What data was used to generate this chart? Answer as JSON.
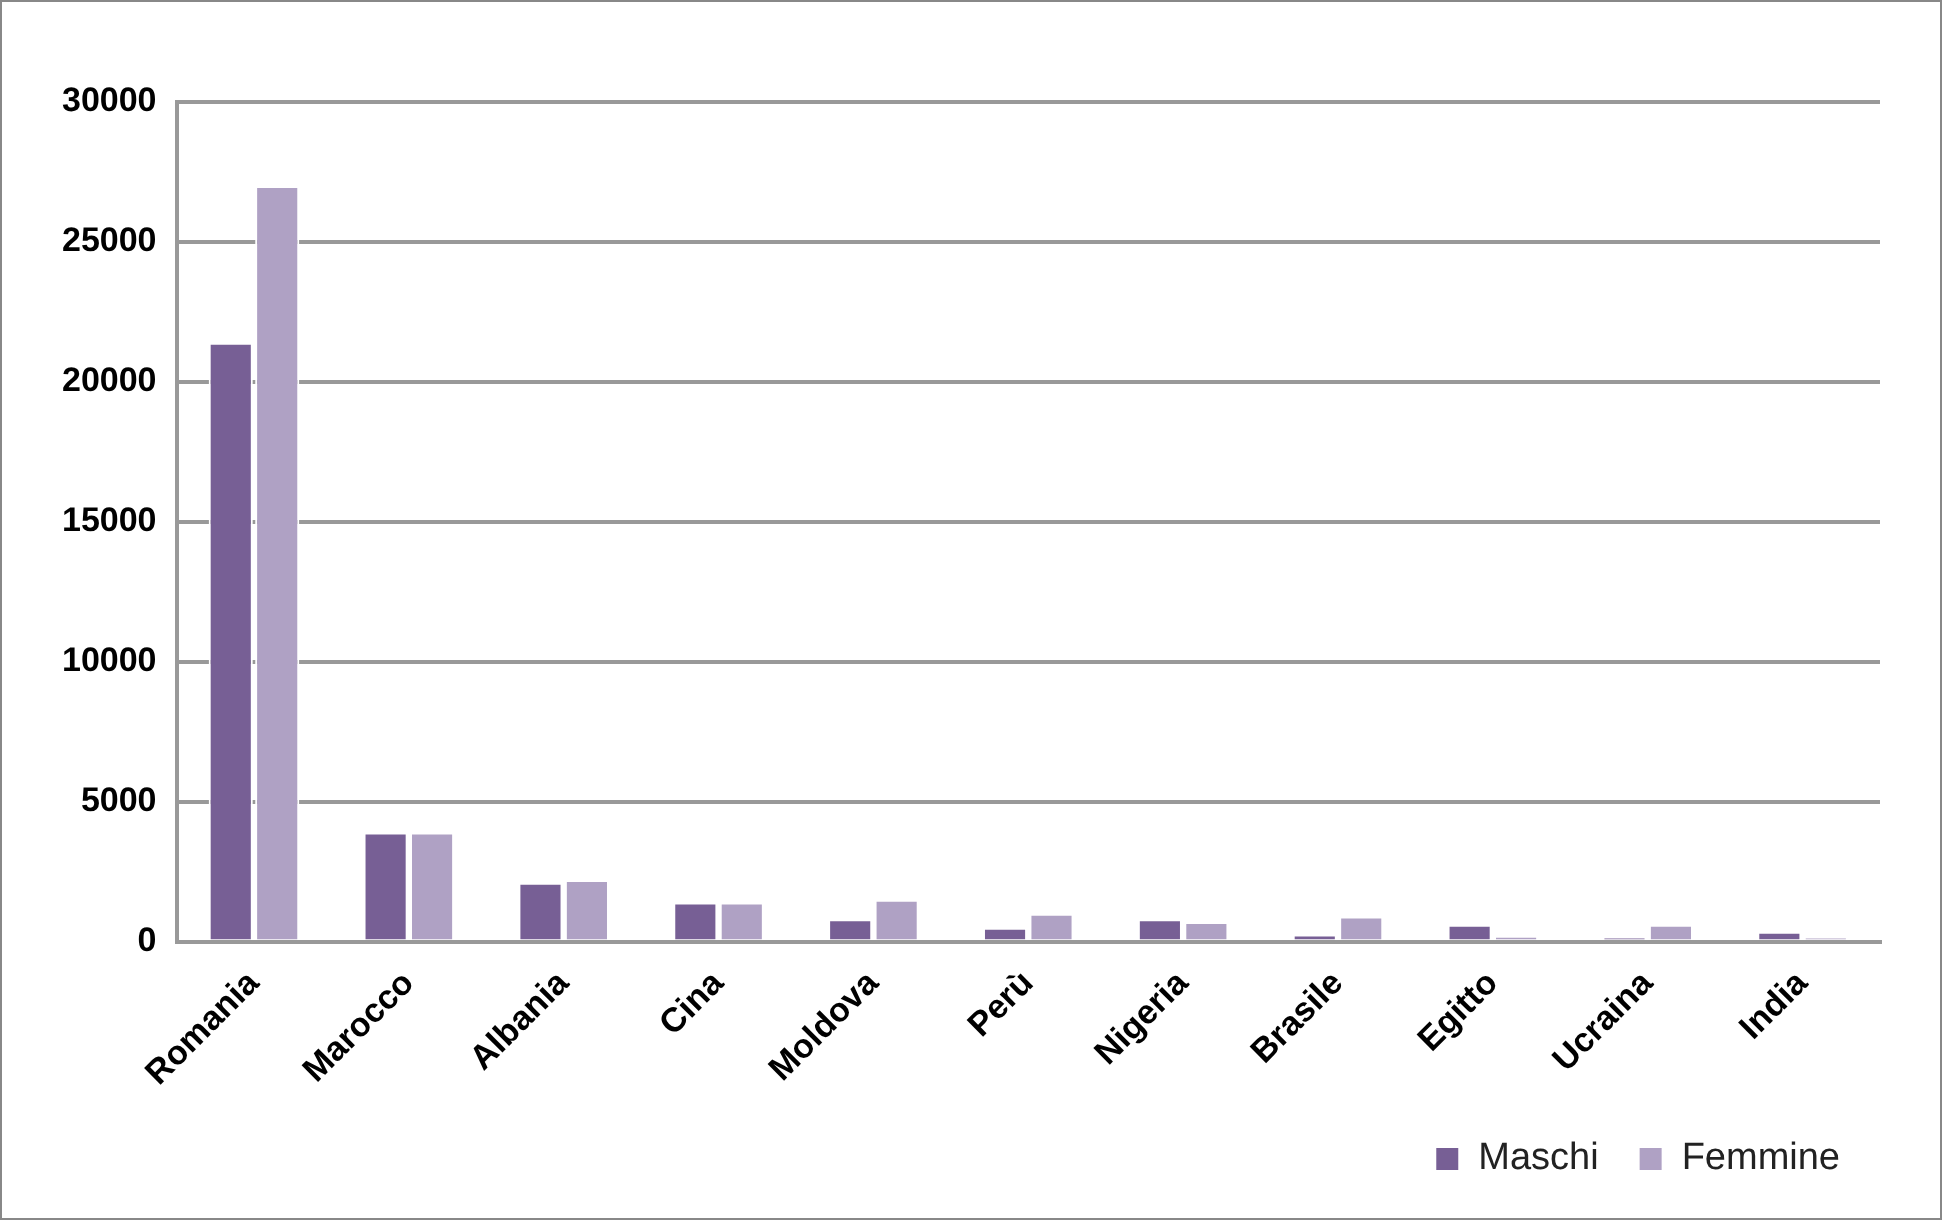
{
  "chart_data": {
    "type": "bar",
    "categories": [
      "Romania",
      "Marocco",
      "Albania",
      "Cina",
      "Moldova",
      "Perù",
      "Nigeria",
      "Brasile",
      "Egitto",
      "Ucraina",
      "India"
    ],
    "series": [
      {
        "name": "Maschi",
        "color": "#775f95",
        "values": [
          21400,
          3900,
          2100,
          1400,
          800,
          500,
          800,
          250,
          600,
          150,
          350
        ]
      },
      {
        "name": "Femmine",
        "color": "#afa1c4",
        "values": [
          27000,
          3900,
          2200,
          1400,
          1500,
          1000,
          700,
          900,
          200,
          600,
          150
        ]
      }
    ],
    "ylim": [
      0,
      30000
    ],
    "yticks": [
      0,
      5000,
      10000,
      15000,
      20000,
      25000,
      30000
    ],
    "grid": "y",
    "legend": "bottom right"
  }
}
